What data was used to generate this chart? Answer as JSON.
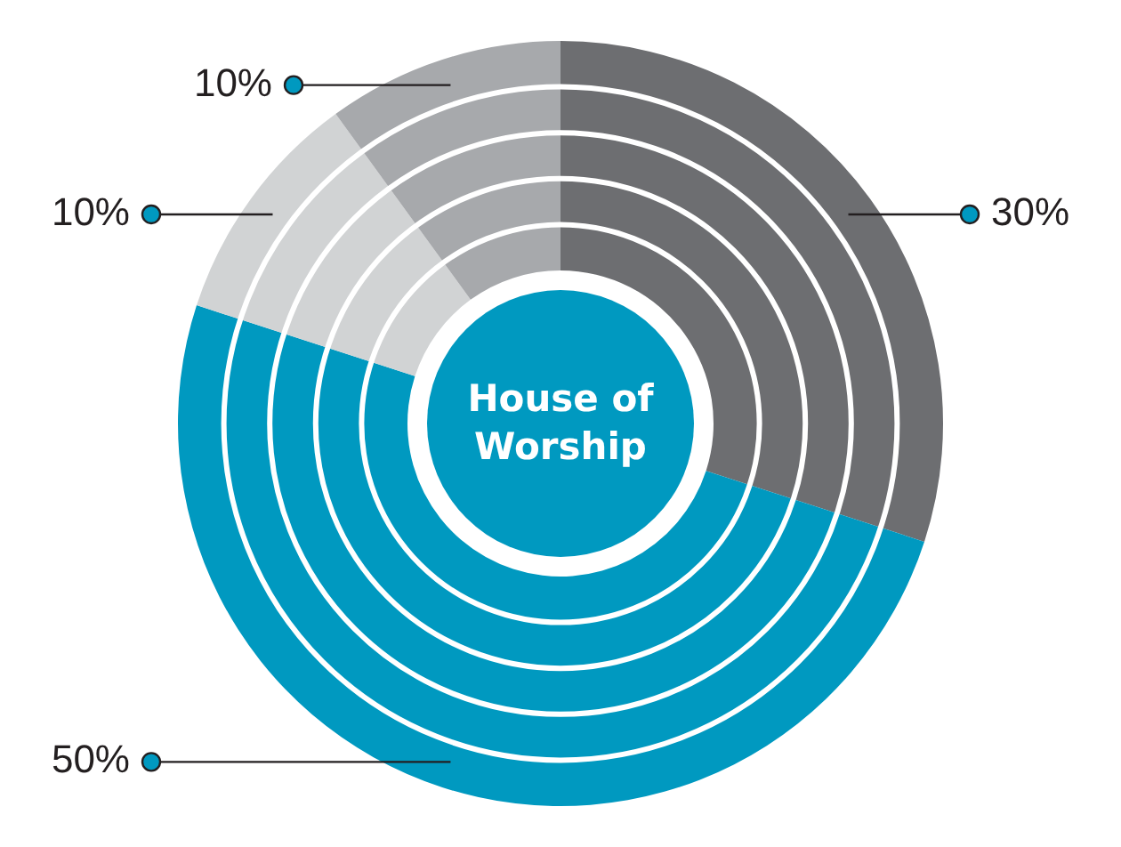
{
  "chart_data": {
    "type": "donut",
    "title": "House of Worship",
    "categories": [
      null,
      null,
      null,
      null
    ],
    "values": [
      30,
      50,
      10,
      10
    ],
    "value_labels": [
      "30%",
      "50%",
      "10%",
      "10%"
    ],
    "colors": [
      "#6d6e71",
      "#0099c0",
      "#d1d3d4",
      "#a7a9ac"
    ],
    "legend": false
  }
}
